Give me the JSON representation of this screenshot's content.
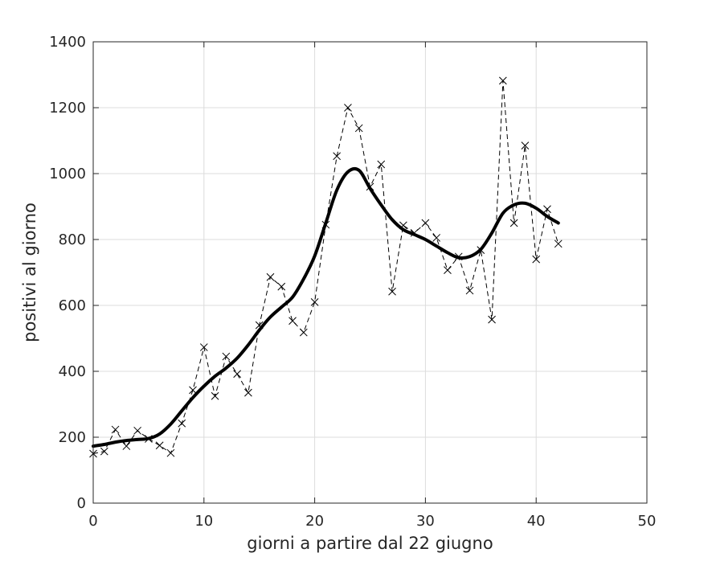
{
  "chart_data": {
    "type": "line",
    "title": "",
    "xlabel": "giorni a partire dal 22 giugno",
    "ylabel": "positivi al giorno",
    "xlim": [
      0,
      50
    ],
    "ylim": [
      0,
      1400
    ],
    "xticks": [
      "0",
      "10",
      "20",
      "30",
      "40",
      "50"
    ],
    "yticks": [
      "0",
      "200",
      "400",
      "600",
      "800",
      "1000",
      "1200",
      "1400"
    ],
    "grid": true,
    "series": [
      {
        "style": "dashed line with x markers",
        "color": "#000000",
        "x": [
          0,
          1,
          2,
          3,
          4,
          5,
          6,
          7,
          8,
          9,
          10,
          11,
          12,
          13,
          14,
          15,
          16,
          17,
          18,
          19,
          20,
          21,
          22,
          23,
          24,
          25,
          26,
          27,
          28,
          29,
          30,
          31,
          32,
          33,
          34,
          35,
          36,
          37,
          38,
          39,
          40,
          41,
          42
        ],
        "y": [
          150,
          157,
          223,
          173,
          220,
          195,
          175,
          152,
          242,
          343,
          473,
          325,
          445,
          392,
          335,
          540,
          686,
          657,
          553,
          518,
          610,
          845,
          1053,
          1200,
          1138,
          960,
          1028,
          642,
          843,
          820,
          850,
          805,
          707,
          748,
          645,
          768,
          557,
          1282,
          850,
          1085,
          740,
          892,
          787
        ]
      },
      {
        "style": "thick solid smoothed line",
        "color": "#000000",
        "x": [
          0,
          1,
          2,
          3,
          4,
          5,
          6,
          7,
          8,
          9,
          10,
          11,
          12,
          13,
          14,
          15,
          16,
          17,
          18,
          19,
          20,
          21,
          22,
          23,
          24,
          25,
          26,
          27,
          28,
          29,
          30,
          31,
          32,
          33,
          34,
          35,
          36,
          37,
          38,
          39,
          40,
          41,
          42
        ],
        "y": [
          173,
          178,
          185,
          190,
          193,
          196,
          210,
          240,
          280,
          320,
          355,
          385,
          410,
          440,
          480,
          525,
          565,
          595,
          625,
          680,
          750,
          850,
          950,
          1005,
          1010,
          955,
          905,
          860,
          830,
          815,
          800,
          780,
          760,
          745,
          748,
          770,
          820,
          880,
          905,
          910,
          895,
          870,
          850
        ]
      }
    ]
  }
}
